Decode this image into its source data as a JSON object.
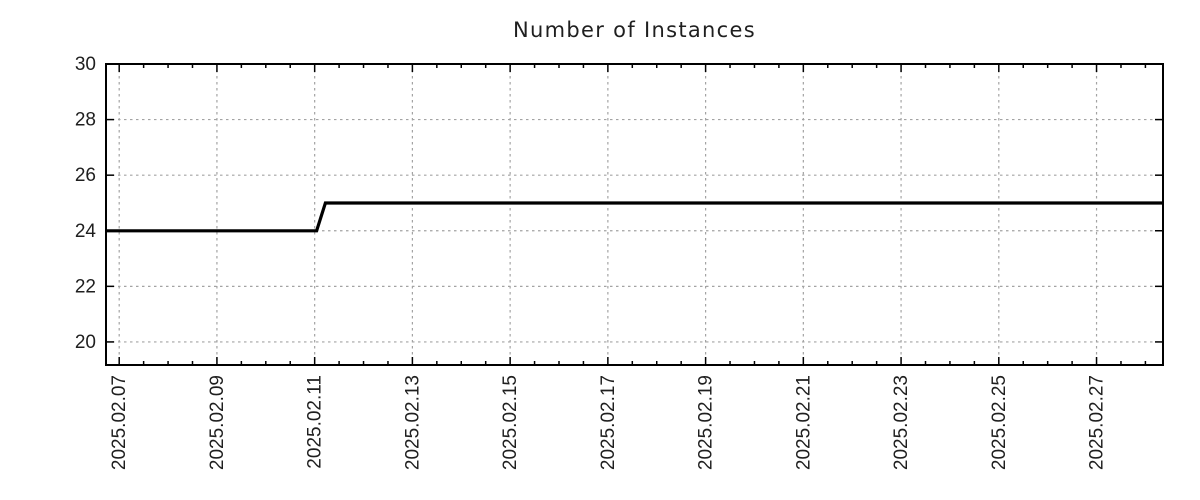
{
  "page": {
    "background": "#ffffff"
  },
  "chart_data": {
    "type": "line",
    "title": "Number of Instances",
    "x_axis": {
      "tick_labels": [
        "2025.02.07",
        "2025.02.09",
        "2025.02.11",
        "2025.02.13",
        "2025.02.15",
        "2025.02.17",
        "2025.02.19",
        "2025.02.21",
        "2025.02.23",
        "2025.02.25",
        "2025.02.27"
      ],
      "tick_positions_days": [
        0,
        2,
        4,
        6,
        8,
        10,
        12,
        14,
        16,
        18,
        20
      ],
      "minor_tick_step_days": 0.5,
      "xlim_days": [
        -0.27,
        21.36
      ],
      "label_rotation_deg": -90
    },
    "y_axis": {
      "tick_labels": [
        "20",
        "22",
        "24",
        "26",
        "28",
        "30"
      ],
      "tick_values": [
        20,
        22,
        24,
        26,
        28,
        30
      ],
      "ylim": [
        19.17,
        30
      ]
    },
    "grid": {
      "show": true,
      "color": "#a3a3a3",
      "dash": "2.5 3.5"
    },
    "axis_color": "#000000",
    "text_color": "#1f1f1f",
    "series": [
      {
        "name": "instances",
        "color": "#000000",
        "line_width": 3.2,
        "points_days_value": [
          [
            -0.27,
            24
          ],
          [
            4.04,
            24
          ],
          [
            4.22,
            25
          ],
          [
            21.36,
            25
          ]
        ]
      }
    ],
    "legend": {
      "show": false
    }
  }
}
